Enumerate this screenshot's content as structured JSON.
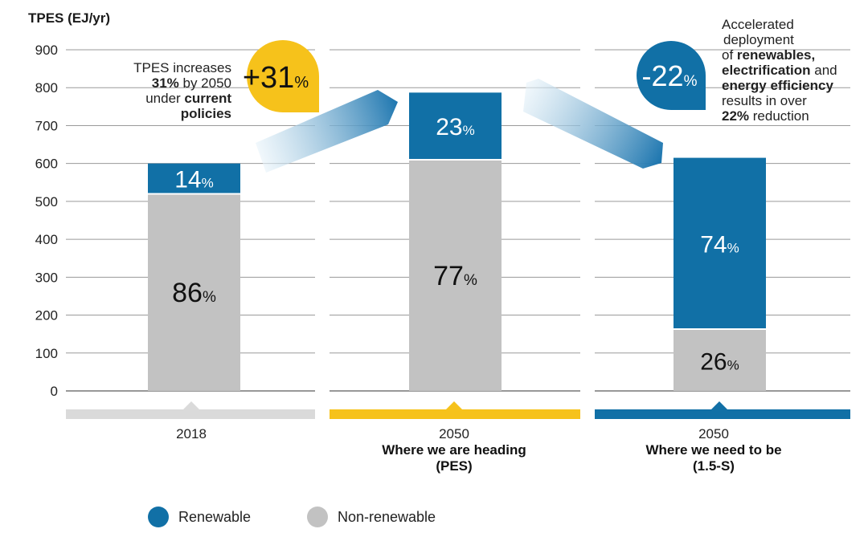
{
  "colors": {
    "renewable": "#1170a6",
    "nonrenewable": "#c2c2c2",
    "grid": "#9a9a9a",
    "band_2018": "#dadada",
    "band_pes": "#f6c21b",
    "band_15s": "#1170a6",
    "arrow_light": "#dcedf7",
    "arrow_dark": "#1f79b2",
    "badge_up": "#f6c21b",
    "badge_down": "#1170a6"
  },
  "chart_data": {
    "type": "bar",
    "stacked": true,
    "ylabel": "TPES (EJ/yr)",
    "ylim": [
      0,
      900
    ],
    "yticks": [
      900,
      800,
      700,
      600,
      500,
      400,
      300,
      200,
      100,
      0
    ],
    "bars": [
      {
        "year": "2018",
        "subtitle": "",
        "total": 600,
        "nonrenewable": {
          "value": 520,
          "label": "86",
          "unit": "%"
        },
        "renewable": {
          "value": 80,
          "label": "14",
          "unit": "%"
        }
      },
      {
        "year": "2050",
        "subtitle": "Where we are heading",
        "subtitle2": "(PES)",
        "total": 787,
        "nonrenewable": {
          "value": 610,
          "label": "77",
          "unit": "%"
        },
        "renewable": {
          "value": 177,
          "label": "23",
          "unit": "%"
        }
      },
      {
        "year": "2050",
        "subtitle": "Where we need to be",
        "subtitle2": "(1.5-S)",
        "total": 615,
        "nonrenewable": {
          "value": 163,
          "label": "26",
          "unit": "%"
        },
        "renewable": {
          "value": 452,
          "label": "74",
          "unit": "%"
        }
      }
    ],
    "legend": [
      {
        "name": "Renewable",
        "color_key": "renewable"
      },
      {
        "name": "Non-renewable",
        "color_key": "nonrenewable"
      }
    ],
    "badges": {
      "increase": {
        "text": "+31",
        "unit": "%"
      },
      "decrease": {
        "text": "-22",
        "unit": "%"
      }
    }
  },
  "annotations": {
    "left": {
      "l1": "TPES increases",
      "l2_bold": "31%",
      "l2_rest": " by 2050",
      "l3": "under ",
      "l3_bold": "current",
      "l4_bold": "policies"
    },
    "right": {
      "l1": "Accelerated",
      "l2": "deployment",
      "l3": "of ",
      "l3_bold": "renewables,",
      "l4_bold": "electrification",
      "l4_rest": " and",
      "l5_bold": "energy efficiency",
      "l6": "results in over",
      "l7_bold": "22%",
      "l7_rest": " reduction"
    }
  }
}
